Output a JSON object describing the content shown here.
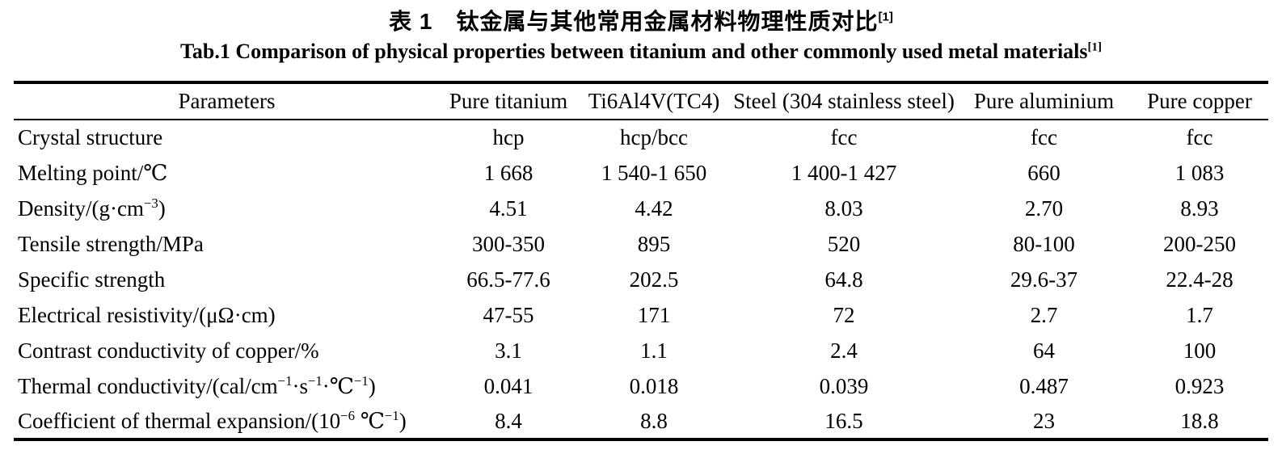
{
  "titles": {
    "chinese": {
      "text": "表 1　钛金属与其他常用金属材料物理性质对比",
      "ref": "[1]"
    },
    "english": {
      "text": "Tab.1 Comparison of physical properties between titanium and other commonly used metal materials",
      "ref": "[1]"
    }
  },
  "table": {
    "columns": [
      "Parameters",
      "Pure titanium",
      "Ti6Al4V(TC4)",
      "Steel (304 stainless steel)",
      "Pure aluminium",
      "Pure copper"
    ],
    "rows": [
      {
        "label_segments": [
          {
            "t": "Crystal structure"
          }
        ],
        "values": [
          "hcp",
          "hcp/bcc",
          "fcc",
          "fcc",
          "fcc"
        ]
      },
      {
        "label_segments": [
          {
            "t": "Melting point/℃"
          }
        ],
        "values": [
          "1 668",
          "1 540-1 650",
          "1 400-1 427",
          "660",
          "1 083"
        ]
      },
      {
        "label_segments": [
          {
            "t": "Density/(g·cm"
          },
          {
            "t": "−3",
            "sup": true
          },
          {
            "t": ")"
          }
        ],
        "values": [
          "4.51",
          "4.42",
          "8.03",
          "2.70",
          "8.93"
        ]
      },
      {
        "label_segments": [
          {
            "t": "Tensile strength/MPa"
          }
        ],
        "values": [
          "300-350",
          "895",
          "520",
          "80-100",
          "200-250"
        ]
      },
      {
        "label_segments": [
          {
            "t": "Specific strength"
          }
        ],
        "values": [
          "66.5-77.6",
          "202.5",
          "64.8",
          "29.6-37",
          "22.4-28"
        ]
      },
      {
        "label_segments": [
          {
            "t": "Electrical resistivity/(μΩ·cm)"
          }
        ],
        "values": [
          "47-55",
          "171",
          "72",
          "2.7",
          "1.7"
        ]
      },
      {
        "label_segments": [
          {
            "t": "Contrast conductivity of copper/%"
          }
        ],
        "values": [
          "3.1",
          "1.1",
          "2.4",
          "64",
          "100"
        ]
      },
      {
        "label_segments": [
          {
            "t": "Thermal conductivity/(cal/cm"
          },
          {
            "t": "−1",
            "sup": true
          },
          {
            "t": "·s"
          },
          {
            "t": "−1",
            "sup": true
          },
          {
            "t": "·℃"
          },
          {
            "t": "−1",
            "sup": true
          },
          {
            "t": ")"
          }
        ],
        "values": [
          "0.041",
          "0.018",
          "0.039",
          "0.487",
          "0.923"
        ]
      },
      {
        "label_segments": [
          {
            "t": "Coefficient of thermal expansion/(10"
          },
          {
            "t": "−6",
            "sup": true
          },
          {
            "t": "  ℃"
          },
          {
            "t": "−1",
            "sup": true
          },
          {
            "t": ")"
          }
        ],
        "values": [
          "8.4",
          "8.8",
          "16.5",
          "23",
          "18.8"
        ]
      }
    ]
  }
}
